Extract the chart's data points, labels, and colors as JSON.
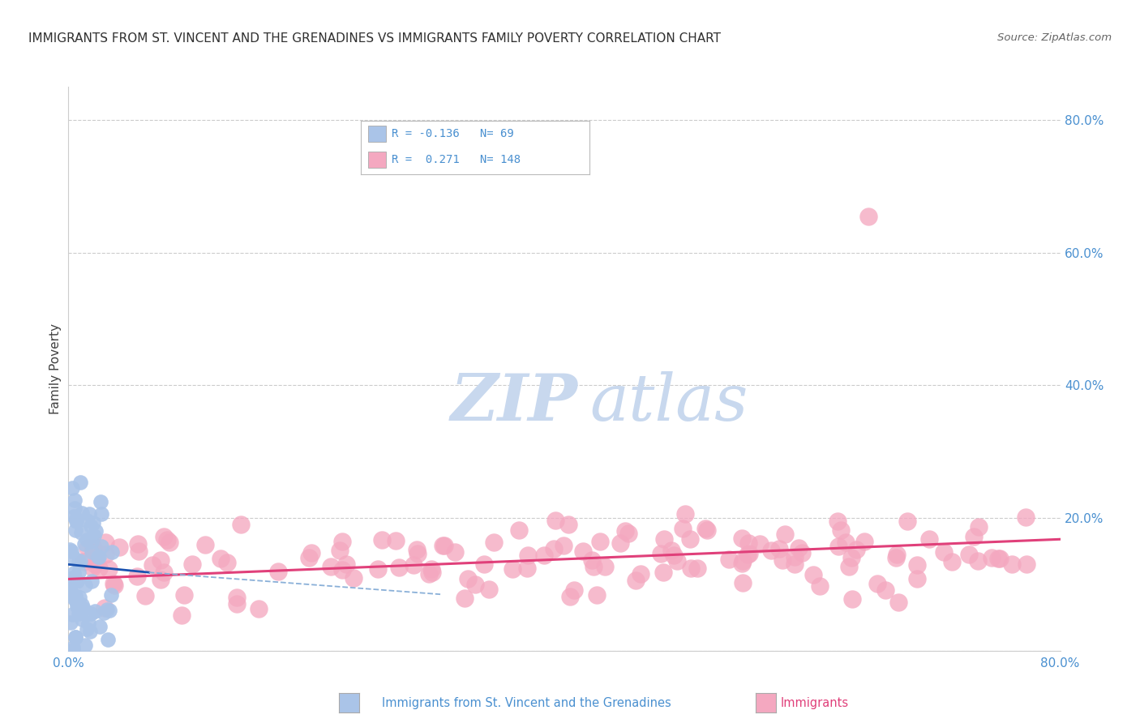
{
  "title": "IMMIGRANTS FROM ST. VINCENT AND THE GRENADINES VS IMMIGRANTS FAMILY POVERTY CORRELATION CHART",
  "source": "Source: ZipAtlas.com",
  "ylabel": "Family Poverty",
  "legend1_label": "Immigrants from St. Vincent and the Grenadines",
  "legend2_label": "Immigrants",
  "r1": -0.136,
  "n1": 69,
  "r2": 0.271,
  "n2": 148,
  "blue_color": "#aac4e8",
  "pink_color": "#f4a8c0",
  "blue_line_color": "#1a52b0",
  "pink_line_color": "#e0407a",
  "blue_dash_color": "#8ab0d8",
  "axis_color": "#4a90d0",
  "title_color": "#303030",
  "source_color": "#666666",
  "watermark_zip_color": "#c8d8ee",
  "watermark_atlas_color": "#c8d8ee",
  "bg_color": "#ffffff",
  "grid_color": "#cccccc",
  "xlim": [
    0.0,
    0.8
  ],
  "ylim": [
    0.0,
    0.85
  ],
  "yticks": [
    0.0,
    0.2,
    0.4,
    0.6,
    0.8
  ],
  "seed": 42
}
